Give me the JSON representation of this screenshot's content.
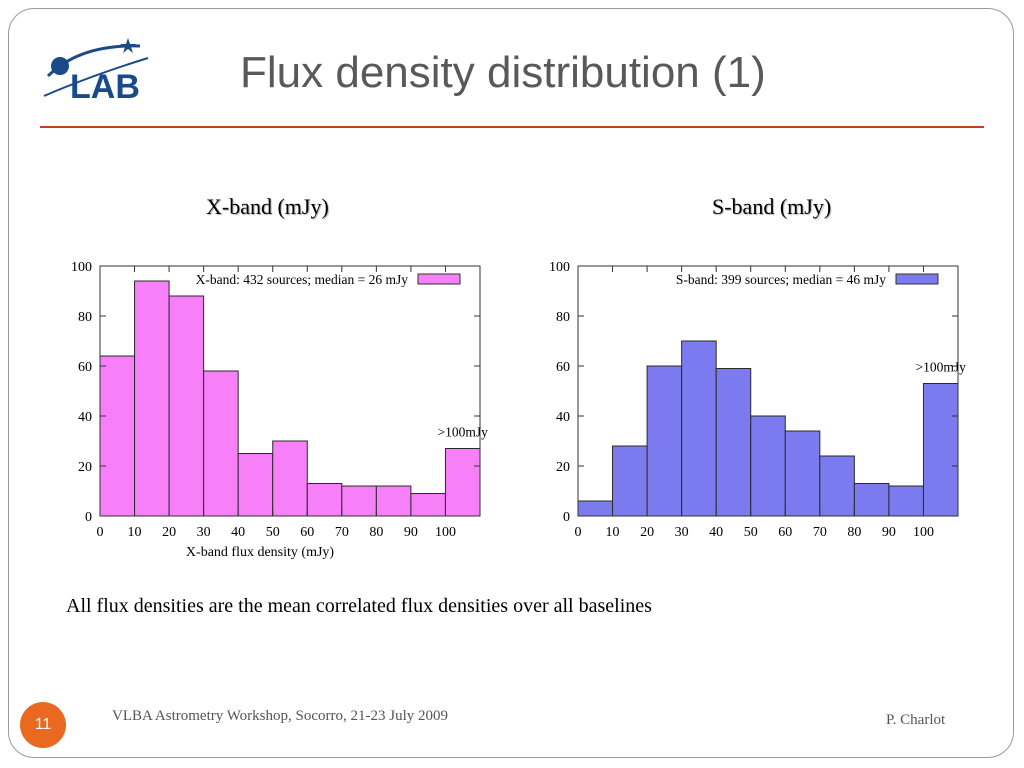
{
  "slide": {
    "title": "Flux density distribution (1)",
    "page_number": "11",
    "caption": "All flux densities are the mean correlated flux densities over all baselines",
    "footer_left": "VLBA Astrometry Workshop, Socorro, 21-23 July 2009",
    "footer_right": "P. Charlot",
    "logo_text": "LAB"
  },
  "labels": {
    "xband": "X-band  (mJy)",
    "sband": "S-band (mJy)"
  },
  "colors": {
    "rule": "#c0431f",
    "page_badge": "#e8691f",
    "xband_fill": "#f77ff7",
    "sband_fill": "#7b7bef"
  },
  "chart_data": [
    {
      "type": "bar",
      "legend": "X-band: 432 sources; median = 26 mJy",
      "legend_color": "#f77ff7",
      "xlabel": "X-band flux density (mJy)",
      "ylabel": "",
      "ylim": [
        0,
        100
      ],
      "xlim": [
        0,
        110
      ],
      "xticks": [
        0,
        10,
        20,
        30,
        40,
        50,
        60,
        70,
        80,
        90,
        100
      ],
      "yticks": [
        0,
        20,
        40,
        60,
        80,
        100
      ],
      "bin_edges": [
        0,
        10,
        20,
        30,
        40,
        50,
        60,
        70,
        80,
        90,
        100,
        110
      ],
      "values": [
        64,
        94,
        88,
        58,
        25,
        30,
        13,
        12,
        12,
        9,
        27
      ],
      "annotation": ">100mJy"
    },
    {
      "type": "bar",
      "legend": "S-band: 399 sources; median = 46 mJy",
      "legend_color": "#7b7bef",
      "xlabel": "",
      "ylabel": "",
      "ylim": [
        0,
        100
      ],
      "xlim": [
        0,
        110
      ],
      "xticks": [
        0,
        10,
        20,
        30,
        40,
        50,
        60,
        70,
        80,
        90,
        100
      ],
      "yticks": [
        0,
        20,
        40,
        60,
        80,
        100
      ],
      "bin_edges": [
        0,
        10,
        20,
        30,
        40,
        50,
        60,
        70,
        80,
        90,
        100,
        110
      ],
      "values": [
        6,
        28,
        60,
        70,
        59,
        40,
        34,
        24,
        13,
        12,
        53
      ],
      "annotation": ">100mJy"
    }
  ]
}
